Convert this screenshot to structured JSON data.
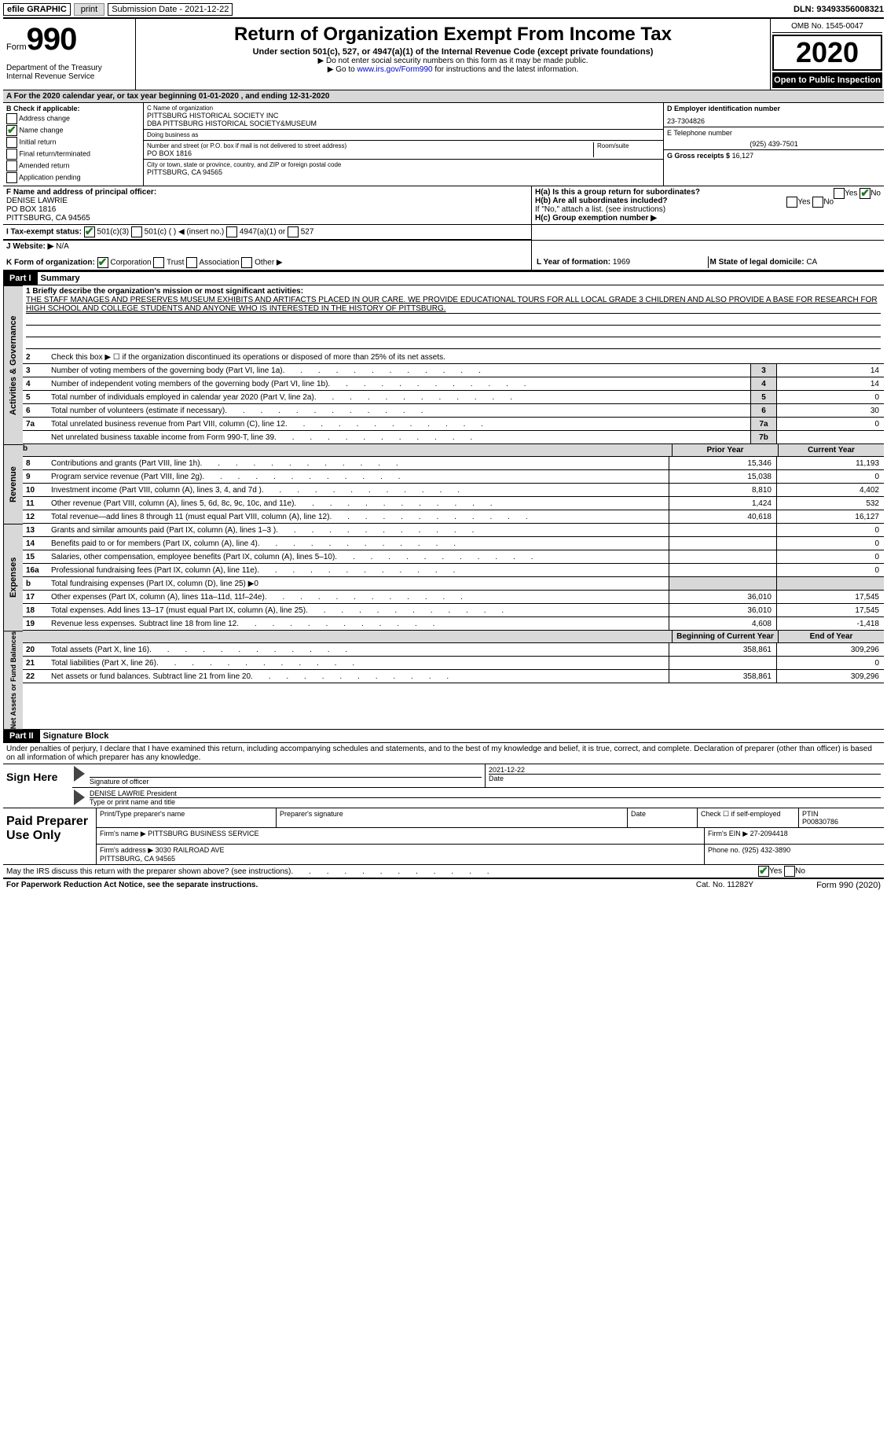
{
  "topbar": {
    "efile": "efile GRAPHIC",
    "print": "print",
    "submission_label": "Submission Date - 2021-12-22",
    "dln": "DLN: 93493356008321"
  },
  "header": {
    "form_label": "Form",
    "form_num": "990",
    "dept": "Department of the Treasury\nInternal Revenue Service",
    "title": "Return of Organization Exempt From Income Tax",
    "subtitle": "Under section 501(c), 527, or 4947(a)(1) of the Internal Revenue Code (except private foundations)",
    "note1": "▶ Do not enter social security numbers on this form as it may be made public.",
    "note2": "▶ Go to www.irs.gov/Form990 for instructions and the latest information.",
    "note2_link": "www.irs.gov/Form990",
    "omb": "OMB No. 1545-0047",
    "year": "2020",
    "open": "Open to Public Inspection"
  },
  "period": {
    "text": "A For the 2020 calendar year, or tax year beginning 01-01-2020   , and ending 12-31-2020"
  },
  "sectionB": {
    "label": "B Check if applicable:",
    "items": [
      {
        "label": "Address change",
        "checked": false
      },
      {
        "label": "Name change",
        "checked": true
      },
      {
        "label": "Initial return",
        "checked": false
      },
      {
        "label": "Final return/terminated",
        "checked": false
      },
      {
        "label": "Amended return",
        "checked": false
      },
      {
        "label": "Application pending",
        "checked": false
      }
    ]
  },
  "sectionC": {
    "name_label": "C Name of organization",
    "name": "PITTSBURG HISTORICAL SOCIETY INC\nDBA PITTSBURG HISTORICAL SOCIETY&MUSEUM",
    "dba_label": "Doing business as",
    "addr_label": "Number and street (or P.O. box if mail is not delivered to street address)",
    "room_label": "Room/suite",
    "addr": "PO BOX 1816",
    "city_label": "City or town, state or province, country, and ZIP or foreign postal code",
    "city": "PITTSBURG, CA  94565"
  },
  "sectionD": {
    "ein_label": "D Employer identification number",
    "ein": "23-7304826",
    "phone_label": "E Telephone number",
    "phone": "(925) 439-7501",
    "gross_label": "G Gross receipts $",
    "gross": "16,127"
  },
  "sectionF": {
    "label": "F  Name and address of principal officer:",
    "name": "DENISE LAWRIE",
    "addr": "PO BOX 1816\nPITTSBURG, CA  94565"
  },
  "sectionH": {
    "ha_label": "H(a)  Is this a group return for subordinates?",
    "ha_yes": false,
    "ha_no": true,
    "hb_label": "H(b)  Are all subordinates included?",
    "hb_note": "If \"No,\" attach a list. (see instructions)",
    "hc_label": "H(c)  Group exemption number ▶"
  },
  "sectionI": {
    "label": "I   Tax-exempt status:",
    "c501c3": true,
    "opts": [
      "501(c)(3)",
      "501(c) (  ) ◀ (insert no.)",
      "4947(a)(1) or",
      "527"
    ]
  },
  "sectionJ": {
    "label": "J   Website: ▶",
    "value": "N/A"
  },
  "sectionK": {
    "label": "K Form of organization:",
    "opts": [
      "Corporation",
      "Trust",
      "Association",
      "Other ▶"
    ],
    "checked": 0
  },
  "sectionL": {
    "label": "L Year of formation:",
    "value": "1969",
    "m_label": "M State of legal domicile:",
    "m_value": "CA"
  },
  "part1": {
    "header": "Part I",
    "title": "Summary",
    "mission_label": "1  Briefly describe the organization's mission or most significant activities:",
    "mission": "THE STAFF MANAGES AND PRESERVES MUSEUM EXHIBITS AND ARTIFACTS PLACED IN OUR CARE. WE PROVIDE EDUCATIONAL TOURS FOR ALL LOCAL GRADE 3 CHILDREN AND ALSO PROVIDE A BASE FOR RESEARCH FOR HIGH SCHOOL AND COLLEGE STUDENTS AND ANYONE WHO IS INTERESTED IN THE HISTORY OF PITTSBURG.",
    "line2": "Check this box ▶ ☐ if the organization discontinued its operations or disposed of more than 25% of its net assets.",
    "side_ag": "Activities & Governance",
    "side_rev": "Revenue",
    "side_exp": "Expenses",
    "side_na": "Net Assets or Fund Balances",
    "col_prior": "Prior Year",
    "col_current": "Current Year",
    "col_begin": "Beginning of Current Year",
    "col_end": "End of Year",
    "ag_lines": [
      {
        "n": "3",
        "d": "Number of voting members of the governing body (Part VI, line 1a)",
        "box": "3",
        "v": "14"
      },
      {
        "n": "4",
        "d": "Number of independent voting members of the governing body (Part VI, line 1b)",
        "box": "4",
        "v": "14"
      },
      {
        "n": "5",
        "d": "Total number of individuals employed in calendar year 2020 (Part V, line 2a)",
        "box": "5",
        "v": "0"
      },
      {
        "n": "6",
        "d": "Total number of volunteers (estimate if necessary)",
        "box": "6",
        "v": "30"
      },
      {
        "n": "7a",
        "d": "Total unrelated business revenue from Part VIII, column (C), line 12",
        "box": "7a",
        "v": "0"
      },
      {
        "n": "",
        "d": "Net unrelated business taxable income from Form 990-T, line 39",
        "box": "7b",
        "v": ""
      }
    ],
    "rev_lines": [
      {
        "n": "8",
        "d": "Contributions and grants (Part VIII, line 1h)",
        "p": "15,346",
        "c": "11,193"
      },
      {
        "n": "9",
        "d": "Program service revenue (Part VIII, line 2g)",
        "p": "15,038",
        "c": "0"
      },
      {
        "n": "10",
        "d": "Investment income (Part VIII, column (A), lines 3, 4, and 7d )",
        "p": "8,810",
        "c": "4,402"
      },
      {
        "n": "11",
        "d": "Other revenue (Part VIII, column (A), lines 5, 6d, 8c, 9c, 10c, and 11e)",
        "p": "1,424",
        "c": "532"
      },
      {
        "n": "12",
        "d": "Total revenue—add lines 8 through 11 (must equal Part VIII, column (A), line 12)",
        "p": "40,618",
        "c": "16,127"
      }
    ],
    "exp_lines": [
      {
        "n": "13",
        "d": "Grants and similar amounts paid (Part IX, column (A), lines 1–3 )",
        "p": "",
        "c": "0"
      },
      {
        "n": "14",
        "d": "Benefits paid to or for members (Part IX, column (A), line 4)",
        "p": "",
        "c": "0"
      },
      {
        "n": "15",
        "d": "Salaries, other compensation, employee benefits (Part IX, column (A), lines 5–10)",
        "p": "",
        "c": "0"
      },
      {
        "n": "16a",
        "d": "Professional fundraising fees (Part IX, column (A), line 11e)",
        "p": "",
        "c": "0"
      },
      {
        "n": "b",
        "d": "Total fundraising expenses (Part IX, column (D), line 25) ▶0",
        "p": null,
        "c": null
      },
      {
        "n": "17",
        "d": "Other expenses (Part IX, column (A), lines 11a–11d, 11f–24e)",
        "p": "36,010",
        "c": "17,545"
      },
      {
        "n": "18",
        "d": "Total expenses. Add lines 13–17 (must equal Part IX, column (A), line 25)",
        "p": "36,010",
        "c": "17,545"
      },
      {
        "n": "19",
        "d": "Revenue less expenses. Subtract line 18 from line 12",
        "p": "4,608",
        "c": "-1,418"
      }
    ],
    "na_lines": [
      {
        "n": "20",
        "d": "Total assets (Part X, line 16)",
        "p": "358,861",
        "c": "309,296"
      },
      {
        "n": "21",
        "d": "Total liabilities (Part X, line 26)",
        "p": "",
        "c": "0"
      },
      {
        "n": "22",
        "d": "Net assets or fund balances. Subtract line 21 from line 20",
        "p": "358,861",
        "c": "309,296"
      }
    ]
  },
  "part2": {
    "header": "Part II",
    "title": "Signature Block",
    "penalties": "Under penalties of perjury, I declare that I have examined this return, including accompanying schedules and statements, and to the best of my knowledge and belief, it is true, correct, and complete. Declaration of preparer (other than officer) is based on all information of which preparer has any knowledge.",
    "sign_here": "Sign Here",
    "sig_officer_label": "Signature of officer",
    "sig_date": "2021-12-22",
    "date_label": "Date",
    "officer_name": "DENISE LAWRIE President",
    "officer_name_label": "Type or print name and title",
    "paid_label": "Paid Preparer Use Only",
    "prep_name_label": "Print/Type preparer's name",
    "prep_sig_label": "Preparer's signature",
    "prep_date_label": "Date",
    "check_self_label": "Check ☐ if self-employed",
    "ptin_label": "PTIN",
    "ptin": "P00830786",
    "firm_name_label": "Firm's name   ▶",
    "firm_name": "PITTSBURG BUSINESS SERVICE",
    "firm_ein_label": "Firm's EIN ▶",
    "firm_ein": "27-2094418",
    "firm_addr_label": "Firm's address ▶",
    "firm_addr": "3030 RAILROAD AVE\nPITTSBURG, CA  94565",
    "firm_phone_label": "Phone no.",
    "firm_phone": "(925) 432-3890",
    "discuss": "May the IRS discuss this return with the preparer shown above? (see instructions)",
    "discuss_yes": true
  },
  "footer": {
    "left": "For Paperwork Reduction Act Notice, see the separate instructions.",
    "mid": "Cat. No. 11282Y",
    "right": "Form 990 (2020)"
  },
  "colors": {
    "bg": "#ffffff",
    "grey": "#d8d8d8",
    "black": "#000000",
    "link": "#0000cc",
    "check_green": "#1a7a1a"
  }
}
